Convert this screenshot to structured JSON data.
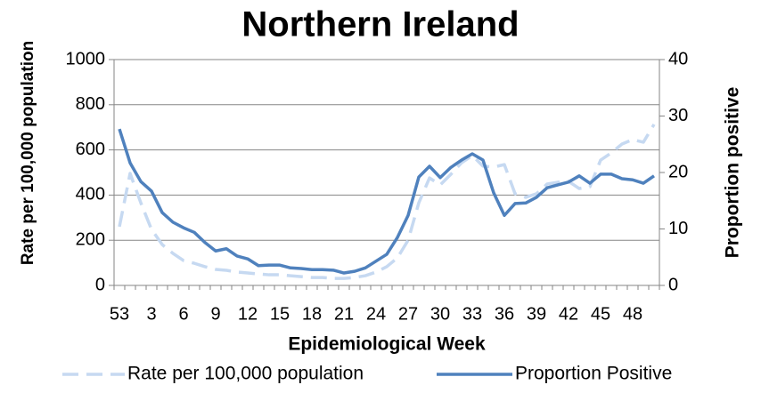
{
  "chart_data": {
    "type": "line",
    "title": "Northern Ireland",
    "x_label": "Epidemiological Week",
    "y_label": "Rate per 100,000 population",
    "y2_label": "Proportion positive",
    "categories": [
      53,
      null,
      null,
      3,
      null,
      null,
      6,
      null,
      null,
      9,
      null,
      null,
      12,
      null,
      null,
      15,
      null,
      null,
      18,
      null,
      null,
      21,
      null,
      null,
      24,
      null,
      null,
      27,
      null,
      null,
      30,
      null,
      null,
      33,
      null,
      null,
      36,
      null,
      null,
      39,
      null,
      null,
      42,
      null,
      null,
      45,
      null,
      null,
      48,
      null,
      null
    ],
    "series": [
      {
        "name": "Rate per 100,000 population",
        "color": "#c6d9f1",
        "style": "dashed",
        "values": [
          260,
          496,
          366,
          248,
          181,
          142,
          110,
          98,
          83,
          71,
          67,
          59,
          55,
          51,
          47,
          47,
          43,
          39,
          35,
          35,
          31,
          31,
          35,
          43,
          59,
          83,
          122,
          200,
          366,
          476,
          445,
          492,
          543,
          575,
          528,
          524,
          535,
          406,
          390,
          406,
          449,
          457,
          461,
          429,
          437,
          555,
          587,
          626,
          646,
          634,
          713
        ]
      },
      {
        "name": "Proportion Positive",
        "color": "#4f81bd",
        "style": "solid",
        "axis": "y2",
        "values": [
          27.7,
          21.7,
          18.4,
          16.7,
          12.9,
          11.2,
          10.2,
          9.4,
          7.6,
          6.1,
          6.5,
          5.2,
          4.7,
          3.5,
          3.6,
          3.6,
          3.1,
          3.0,
          2.8,
          2.8,
          2.7,
          2.2,
          2.5,
          3.1,
          4.3,
          5.5,
          8.5,
          12.4,
          19.2,
          21.1,
          19.1,
          20.9,
          22.2,
          23.3,
          22.2,
          16.4,
          12.4,
          14.5,
          14.6,
          15.6,
          17.3,
          17.8,
          18.3,
          19.4,
          18.1,
          19.7,
          19.7,
          18.9,
          18.7,
          18.1,
          19.4
        ]
      }
    ],
    "ylim": [
      0,
      1000
    ],
    "yticks": [
      0,
      200,
      400,
      600,
      800,
      1000
    ],
    "y2lim": [
      0,
      40
    ],
    "y2ticks": [
      0,
      10,
      20,
      30,
      40
    ],
    "grid": true,
    "legend": "bottom"
  }
}
